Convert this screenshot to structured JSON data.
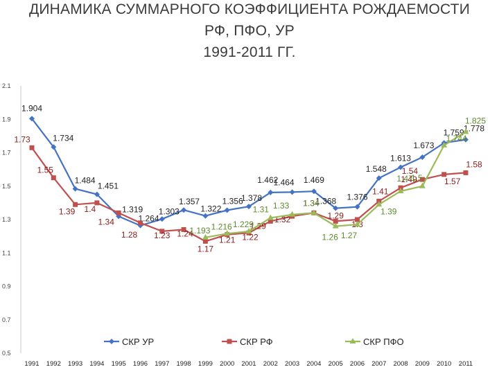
{
  "slide": {
    "title_lines": [
      "ДИНАМИКА СУММАРНОГО КОЭФФИЦИЕНТА РОЖДАЕМОСТИ",
      "РФ, ПФО, УР",
      "1991-2011 ГГ."
    ]
  },
  "chart_data": {
    "type": "line",
    "title": "",
    "xlabel": "",
    "ylabel": "",
    "ylim": [
      0.5,
      2.1
    ],
    "y_ticks": [
      "0.5",
      "0.7",
      "0.9",
      "1.1",
      "1.3",
      "1.5",
      "1.7",
      "1.9",
      "2.1"
    ],
    "grid": false,
    "legend_position": "bottom",
    "categories": [
      "1991",
      "1992",
      "1993",
      "1994",
      "1995",
      "1996",
      "1997",
      "1998",
      "1999",
      "2000",
      "2001",
      "2002",
      "2003",
      "2004",
      "2005",
      "2006",
      "2007",
      "2008",
      "2009",
      "2010",
      "2011"
    ],
    "series": [
      {
        "name": "СКР УР",
        "color": "#4472c4",
        "marker": "diamond",
        "values": [
          1.904,
          1.734,
          1.484,
          1.451,
          1.319,
          1.264,
          1.303,
          1.357,
          1.322,
          1.356,
          1.378,
          1.462,
          1.464,
          1.469,
          1.368,
          1.376,
          1.548,
          1.613,
          1.673,
          1.759,
          1.778
        ],
        "labels": [
          "1.904",
          "1.734",
          "1.484",
          "1.451",
          "1.319",
          "1.264",
          "1.303",
          "1.357",
          "1.322",
          "1.356",
          "1.378",
          "1.462",
          "1.464",
          "1.469",
          "1.368",
          "1.376",
          "1.548",
          "1.613",
          "1.673",
          "1.759",
          "1.778"
        ]
      },
      {
        "name": "СКР РФ",
        "color": "#c0504d",
        "marker": "square",
        "values": [
          1.73,
          1.55,
          1.39,
          1.4,
          1.34,
          1.28,
          1.23,
          1.24,
          1.17,
          1.21,
          1.22,
          1.29,
          1.32,
          1.34,
          1.29,
          1.3,
          1.41,
          1.49,
          1.54,
          1.57,
          1.58
        ],
        "labels": [
          "1.73",
          "1.55",
          "1.39",
          "1.4",
          "1.34",
          "1.28",
          "1.23",
          "1.24",
          "1.17",
          "1.21",
          "1.22",
          "1.29",
          "1.32",
          "1.34",
          "1.29",
          "1.3",
          "1.41",
          "1.49",
          "1.54",
          "1.57",
          "1.58"
        ]
      },
      {
        "name": "СКР ПФО",
        "color": "#9bbb59",
        "marker": "triangle",
        "values": [
          null,
          null,
          null,
          null,
          null,
          null,
          null,
          null,
          1.193,
          1.216,
          1.229,
          1.31,
          1.33,
          1.34,
          1.26,
          1.27,
          1.39,
          1.47,
          1.5,
          1.744,
          1.825
        ],
        "labels": [
          null,
          null,
          null,
          null,
          null,
          null,
          null,
          null,
          "1.193",
          "1.216",
          "1.229",
          "1.31",
          "1.33",
          "1.34",
          "1.26",
          "1.27",
          "1.39",
          "1.47",
          "1.5",
          "1.744",
          "1.825"
        ]
      }
    ]
  }
}
